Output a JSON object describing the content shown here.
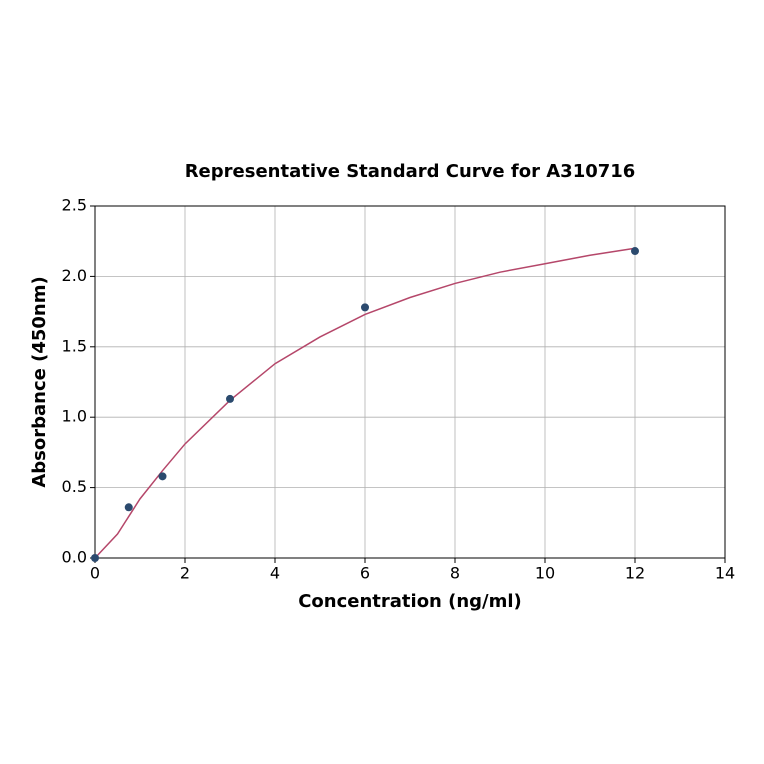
{
  "chart_data": {
    "type": "scatter",
    "title": "Representative Standard Curve for A310716",
    "x_label": "Concentration (ng/ml)",
    "y_label": "Absorbance (450nm)",
    "xlim": [
      0,
      14
    ],
    "xticks": [
      0,
      2,
      4,
      6,
      8,
      10,
      12,
      14
    ],
    "ylim": [
      0,
      2.5
    ],
    "yticks": [
      {
        "value": 0,
        "label": "0.0"
      },
      {
        "value": 0.5,
        "label": "0.5"
      },
      {
        "value": 1,
        "label": "1.0"
      },
      {
        "value": 1.5,
        "label": "1.5"
      },
      {
        "value": 2,
        "label": "2.0"
      },
      {
        "value": 2.5,
        "label": "2.5"
      }
    ],
    "grid": true,
    "series": [
      {
        "type": "line",
        "color": "#b5476a",
        "x": [
          0,
          0.5,
          1,
          1.5,
          2,
          3,
          4,
          5,
          6,
          7,
          8,
          9,
          10,
          11,
          12
        ],
        "values": [
          0,
          0.17,
          0.42,
          0.62,
          0.81,
          1.12,
          1.38,
          1.57,
          1.73,
          1.85,
          1.95,
          2.03,
          2.09,
          2.15,
          2.2
        ]
      },
      {
        "type": "scatter",
        "color": "#2b4a6e",
        "x": [
          0,
          0.75,
          1.5,
          3,
          6,
          12
        ],
        "values": [
          0,
          0.36,
          0.58,
          1.13,
          1.78,
          2.18
        ]
      }
    ]
  }
}
